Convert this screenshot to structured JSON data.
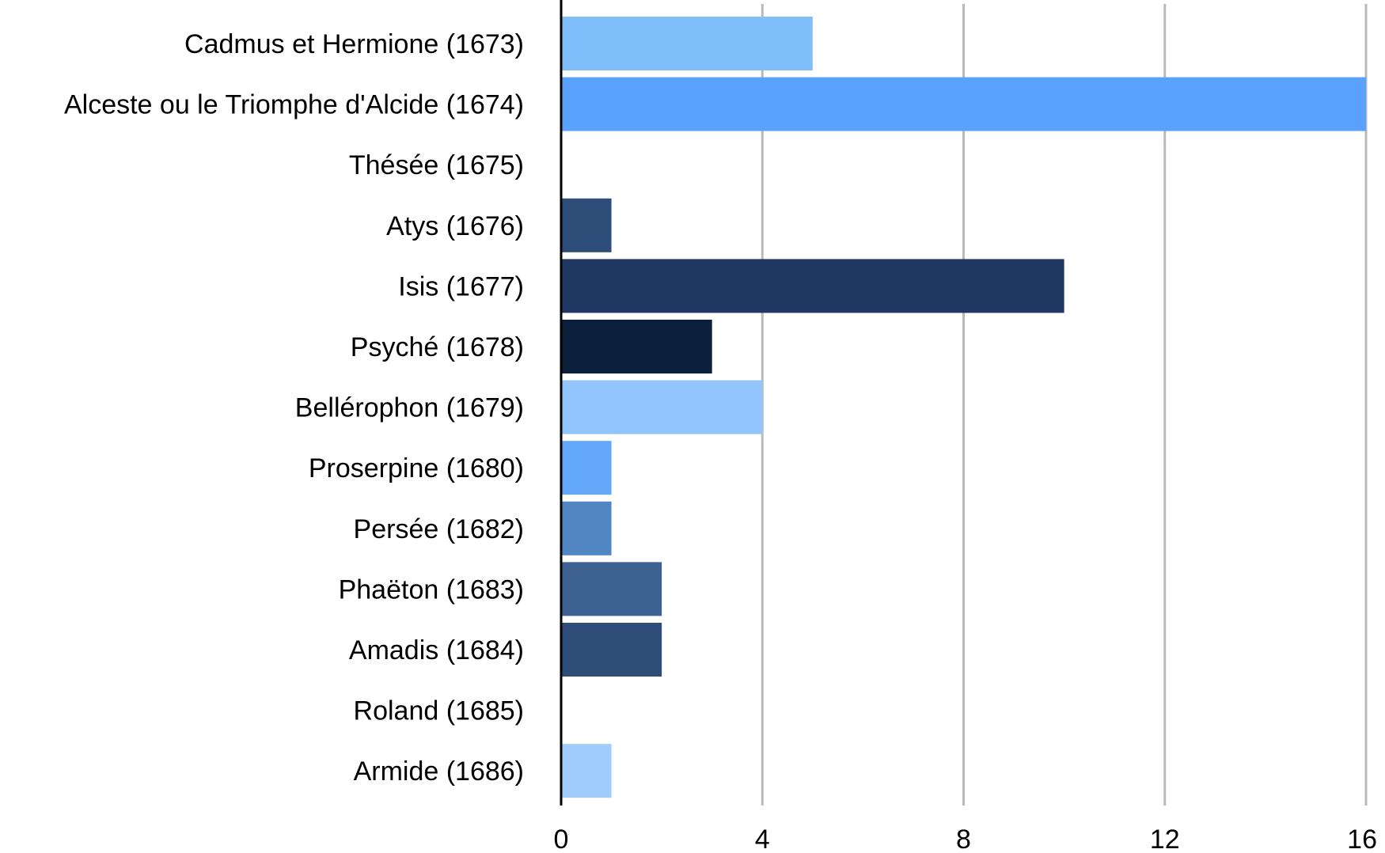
{
  "chart_data": {
    "type": "bar",
    "orientation": "horizontal",
    "title": "",
    "xlabel": "",
    "ylabel": "",
    "categories": [
      "Cadmus et Hermione (1673)",
      "Alceste ou le Triomphe d'Alcide (1674)",
      "Thésée (1675)",
      "Atys (1676)",
      "Isis (1677)",
      "Psyché (1678)",
      "Bellérophon (1679)",
      "Proserpine (1680)",
      "Persée (1682)",
      "Phaëton (1683)",
      "Amadis (1684)",
      "Roland (1685)",
      "Armide (1686)"
    ],
    "values": [
      5,
      16,
      0,
      1,
      10,
      3,
      4,
      1,
      1,
      2,
      2,
      0,
      1
    ],
    "colors": [
      "#80bdfb",
      "#5aa1fb",
      "#4d7fc0",
      "#2e4c78",
      "#213962",
      "#0c1f3b",
      "#91c5fb",
      "#63a8f9",
      "#5186c3",
      "#3d6190",
      "#2e4c78",
      "#2e4c78",
      "#a0cdfb"
    ],
    "xlim": [
      0,
      16
    ],
    "xticks": [
      "0",
      "4",
      "8",
      "12",
      "16"
    ],
    "grid": "vertical",
    "legend": "none"
  }
}
